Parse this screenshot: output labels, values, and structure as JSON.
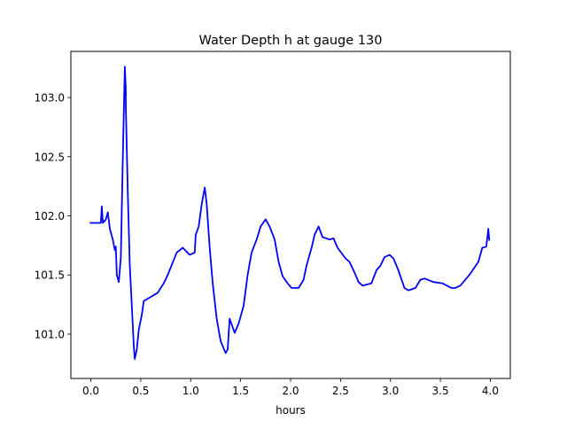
{
  "chart_data": {
    "type": "line",
    "title": "Water Depth h at gauge 130",
    "xlabel": "hours",
    "ylabel": "",
    "xlim": [
      -0.2,
      4.2
    ],
    "ylim": [
      100.625,
      103.39
    ],
    "xticks": [
      0.0,
      0.5,
      1.0,
      1.5,
      2.0,
      2.5,
      3.0,
      3.5,
      4.0
    ],
    "xtick_labels": [
      "0.0",
      "0.5",
      "1.0",
      "1.5",
      "2.0",
      "2.5",
      "3.0",
      "3.5",
      "4.0"
    ],
    "yticks": [
      101.0,
      101.5,
      102.0,
      102.5,
      103.0
    ],
    "ytick_labels": [
      "101.0",
      "101.5",
      "102.0",
      "102.5",
      "103.0"
    ],
    "grid": false,
    "series": [
      {
        "name": "h",
        "color": "#0000ff",
        "x": [
          -0.01,
          0.1,
          0.11,
          0.12,
          0.15,
          0.17,
          0.19,
          0.22,
          0.24,
          0.25,
          0.26,
          0.28,
          0.3,
          0.32,
          0.34,
          0.35,
          0.35,
          0.37,
          0.39,
          0.41,
          0.43,
          0.44,
          0.46,
          0.48,
          0.51,
          0.53,
          0.59,
          0.67,
          0.73,
          0.77,
          0.86,
          0.92,
          0.99,
          1.04,
          1.05,
          1.08,
          1.11,
          1.14,
          1.16,
          1.19,
          1.22,
          1.26,
          1.3,
          1.35,
          1.37,
          1.39,
          1.44,
          1.48,
          1.53,
          1.57,
          1.61,
          1.66,
          1.7,
          1.75,
          1.79,
          1.84,
          1.88,
          1.92,
          1.97,
          2.01,
          2.08,
          2.13,
          2.16,
          2.21,
          2.24,
          2.28,
          2.32,
          2.39,
          2.43,
          2.47,
          2.55,
          2.59,
          2.63,
          2.68,
          2.72,
          2.81,
          2.86,
          2.9,
          2.94,
          2.99,
          3.03,
          3.08,
          3.14,
          3.18,
          3.25,
          3.3,
          3.34,
          3.43,
          3.52,
          3.61,
          3.65,
          3.7,
          3.79,
          3.88,
          3.92,
          3.96,
          3.98,
          3.99
        ],
        "y": [
          101.94,
          101.94,
          102.08,
          101.94,
          101.97,
          102.03,
          101.89,
          101.8,
          101.71,
          101.74,
          101.5,
          101.44,
          101.65,
          102.48,
          103.26,
          103.07,
          102.93,
          102.18,
          101.58,
          101.24,
          100.9,
          100.79,
          100.87,
          101.04,
          101.16,
          101.28,
          101.31,
          101.35,
          101.43,
          101.5,
          101.69,
          101.73,
          101.67,
          101.69,
          101.84,
          101.91,
          102.1,
          102.24,
          102.1,
          101.73,
          101.43,
          101.13,
          100.94,
          100.84,
          100.87,
          101.13,
          101.01,
          101.09,
          101.24,
          101.5,
          101.69,
          101.8,
          101.91,
          101.97,
          101.91,
          101.8,
          101.61,
          101.49,
          101.43,
          101.39,
          101.39,
          101.46,
          101.58,
          101.73,
          101.84,
          101.91,
          101.82,
          101.8,
          101.81,
          101.73,
          101.64,
          101.61,
          101.54,
          101.44,
          101.41,
          101.43,
          101.54,
          101.58,
          101.65,
          101.67,
          101.64,
          101.54,
          101.39,
          101.37,
          101.39,
          101.46,
          101.47,
          101.44,
          101.43,
          101.39,
          101.39,
          101.41,
          101.5,
          101.61,
          101.73,
          101.74,
          101.89,
          101.79
        ]
      }
    ]
  }
}
